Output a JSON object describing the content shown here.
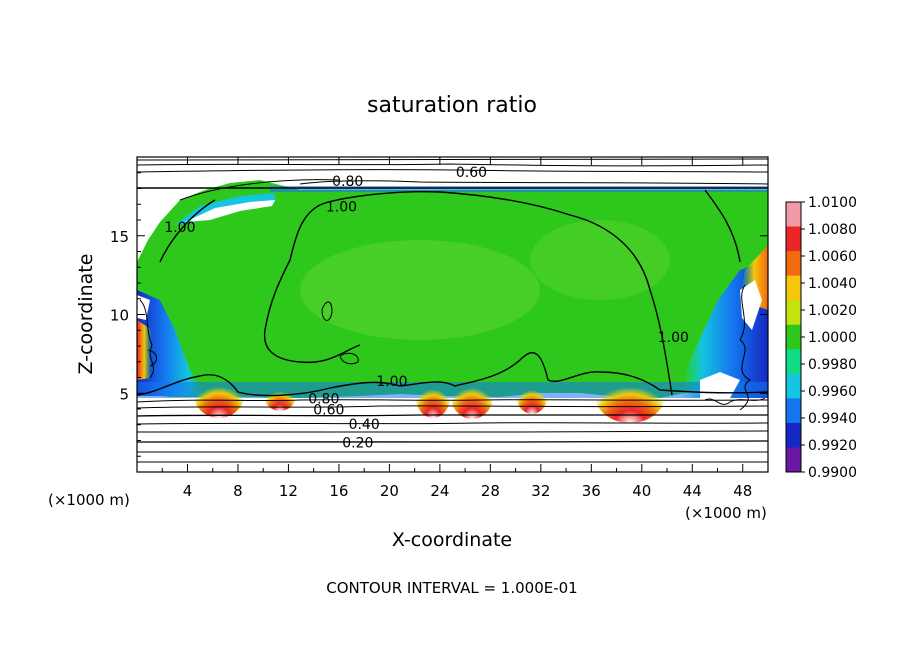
{
  "chart_data": {
    "type": "heatmap",
    "title": "saturation ratio",
    "xlabel": "X-coordinate",
    "ylabel": "Z-coordinate",
    "x_unit_label": "(×1000 m)",
    "y_unit_label": "(×1000 m)",
    "xlim": [
      0,
      50
    ],
    "ylim": [
      0,
      20
    ],
    "x_ticks": [
      4,
      8,
      12,
      16,
      20,
      24,
      28,
      32,
      36,
      40,
      44,
      48
    ],
    "y_ticks": [
      5,
      10,
      15
    ],
    "footer": "CONTOUR INTERVAL = 1.000E-01",
    "colorbar": {
      "levels": [
        "1.0100",
        "1.0080",
        "1.0060",
        "1.0040",
        "1.0020",
        "1.0000",
        "0.9980",
        "0.9960",
        "0.9940",
        "0.9920",
        "0.9900"
      ],
      "colors": [
        "#f29aa8",
        "#ec2626",
        "#f06a10",
        "#f6c60a",
        "#c6e20e",
        "#2ec81c",
        "#10dc86",
        "#14c4e0",
        "#1476ee",
        "#1428c4",
        "#6a18a4"
      ]
    },
    "contour_labels": [
      {
        "text": "0.60",
        "x": 26.5,
        "z": 19.0
      },
      {
        "text": "0.80",
        "x": 16.7,
        "z": 18.4
      },
      {
        "text": "1.00",
        "x": 16.2,
        "z": 16.8
      },
      {
        "text": "1.00",
        "x": 3.4,
        "z": 15.5
      },
      {
        "text": "1.00",
        "x": 42.5,
        "z": 8.5
      },
      {
        "text": "1.00",
        "x": 20.2,
        "z": 5.7
      },
      {
        "text": "0.80",
        "x": 14.8,
        "z": 4.6
      },
      {
        "text": "0.60",
        "x": 15.2,
        "z": 3.9
      },
      {
        "text": "0.40",
        "x": 18.0,
        "z": 3.0
      },
      {
        "text": "0.20",
        "x": 17.5,
        "z": 1.8
      }
    ]
  }
}
